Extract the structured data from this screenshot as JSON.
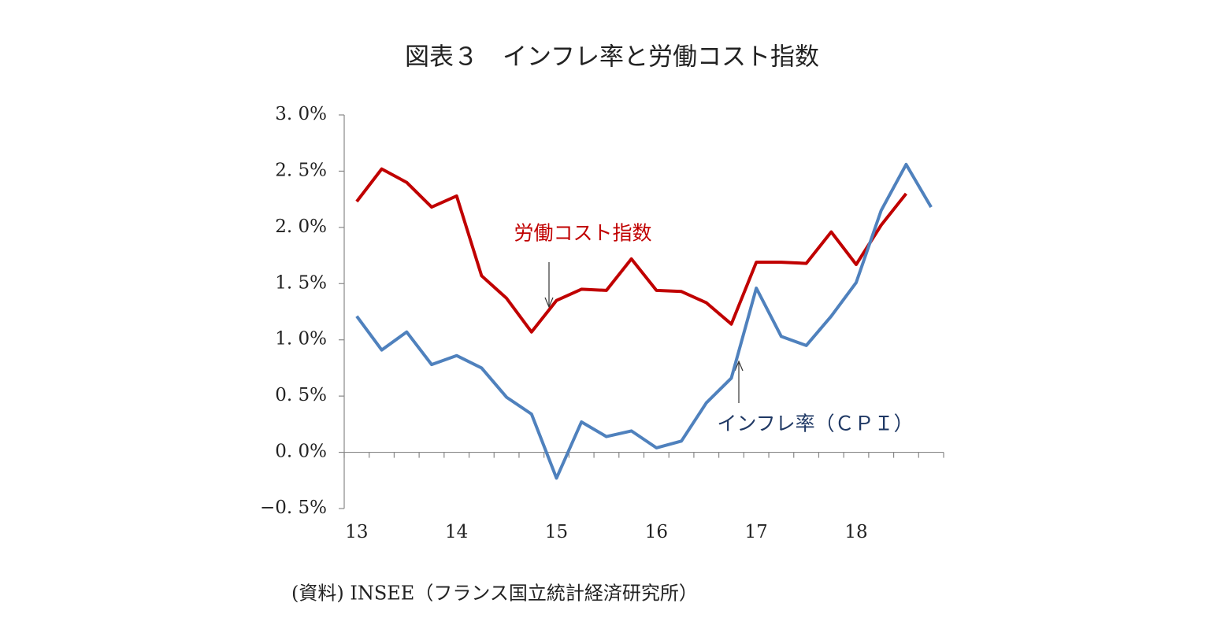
{
  "chart_data": {
    "type": "line",
    "title": "図表３　インフレ率と労働コスト指数",
    "source": "(資料) INSEE（フランス国立統計経済研究所）",
    "categories": [
      "13",
      null,
      null,
      null,
      "14",
      null,
      null,
      null,
      "15",
      null,
      null,
      null,
      "16",
      null,
      null,
      null,
      "17",
      null,
      null,
      null,
      "18",
      null,
      null,
      null
    ],
    "series": [
      {
        "name": "労働コスト指数",
        "color": "#c00000",
        "values": [
          2.23,
          2.52,
          2.4,
          2.18,
          2.28,
          1.57,
          1.37,
          1.07,
          1.35,
          1.45,
          1.44,
          1.72,
          1.44,
          1.43,
          1.33,
          1.14,
          1.69,
          1.69,
          1.68,
          1.96,
          1.67,
          2.02,
          2.3,
          null
        ]
      },
      {
        "name": "インフレ率（ＣＰＩ）",
        "color": "#4f81bd",
        "values": [
          1.21,
          0.91,
          1.07,
          0.78,
          0.86,
          0.75,
          0.49,
          0.34,
          -0.23,
          0.27,
          0.14,
          0.19,
          0.04,
          0.1,
          0.44,
          0.66,
          1.46,
          1.03,
          0.95,
          1.21,
          1.51,
          2.15,
          2.56,
          2.18
        ]
      }
    ],
    "ylim": [
      -0.5,
      3.0
    ],
    "yticks": [
      {
        "value": -0.5,
        "label": "−0. 5%"
      },
      {
        "value": 0,
        "label": "0. 0%"
      },
      {
        "value": 0.5,
        "label": "0. 5%"
      },
      {
        "value": 1,
        "label": "1. 0%"
      },
      {
        "value": 1.5,
        "label": "1. 5%"
      },
      {
        "value": 2,
        "label": "2. 0%"
      },
      {
        "value": 2.5,
        "label": "2. 5%"
      },
      {
        "value": 3,
        "label": "3. 0%"
      }
    ]
  }
}
